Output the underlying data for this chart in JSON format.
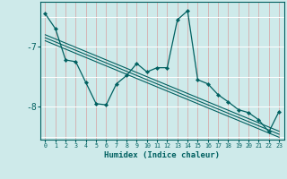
{
  "xlabel": "Humidex (Indice chaleur)",
  "bg_color": "#ceeaea",
  "line_color": "#006060",
  "x_values": [
    0,
    1,
    2,
    3,
    4,
    5,
    6,
    7,
    8,
    9,
    10,
    11,
    12,
    13,
    14,
    15,
    16,
    17,
    18,
    19,
    20,
    21,
    22,
    23
  ],
  "y_main": [
    -6.45,
    -6.7,
    -7.22,
    -7.25,
    -7.6,
    -7.95,
    -7.97,
    -7.62,
    -7.48,
    -7.28,
    -7.42,
    -7.35,
    -7.35,
    -6.55,
    -6.4,
    -7.55,
    -7.62,
    -7.8,
    -7.92,
    -8.05,
    -8.1,
    -8.22,
    -8.42,
    -8.08
  ],
  "y_reg1": [
    -6.9,
    -6.97,
    -7.04,
    -7.11,
    -7.18,
    -7.25,
    -7.32,
    -7.39,
    -7.46,
    -7.53,
    -7.6,
    -7.67,
    -7.74,
    -7.81,
    -7.88,
    -7.95,
    -8.02,
    -8.09,
    -8.16,
    -8.23,
    -8.3,
    -8.37,
    -8.44,
    -8.51
  ],
  "y_reg2": [
    -6.85,
    -6.92,
    -6.99,
    -7.06,
    -7.13,
    -7.2,
    -7.27,
    -7.34,
    -7.41,
    -7.48,
    -7.55,
    -7.62,
    -7.69,
    -7.76,
    -7.83,
    -7.9,
    -7.97,
    -8.04,
    -8.11,
    -8.18,
    -8.25,
    -8.32,
    -8.39,
    -8.46
  ],
  "y_reg3": [
    -6.8,
    -6.87,
    -6.94,
    -7.01,
    -7.08,
    -7.15,
    -7.22,
    -7.29,
    -7.36,
    -7.43,
    -7.5,
    -7.57,
    -7.64,
    -7.71,
    -7.78,
    -7.85,
    -7.92,
    -7.99,
    -8.06,
    -8.13,
    -8.2,
    -8.27,
    -8.34,
    -8.41
  ],
  "ylim": [
    -8.55,
    -6.25
  ],
  "yticks": [
    -8.0,
    -7.0
  ],
  "xlim": [
    -0.5,
    23.5
  ],
  "xticks": [
    0,
    1,
    2,
    3,
    4,
    5,
    6,
    7,
    8,
    9,
    10,
    11,
    12,
    13,
    14,
    15,
    16,
    17,
    18,
    19,
    20,
    21,
    22,
    23
  ]
}
